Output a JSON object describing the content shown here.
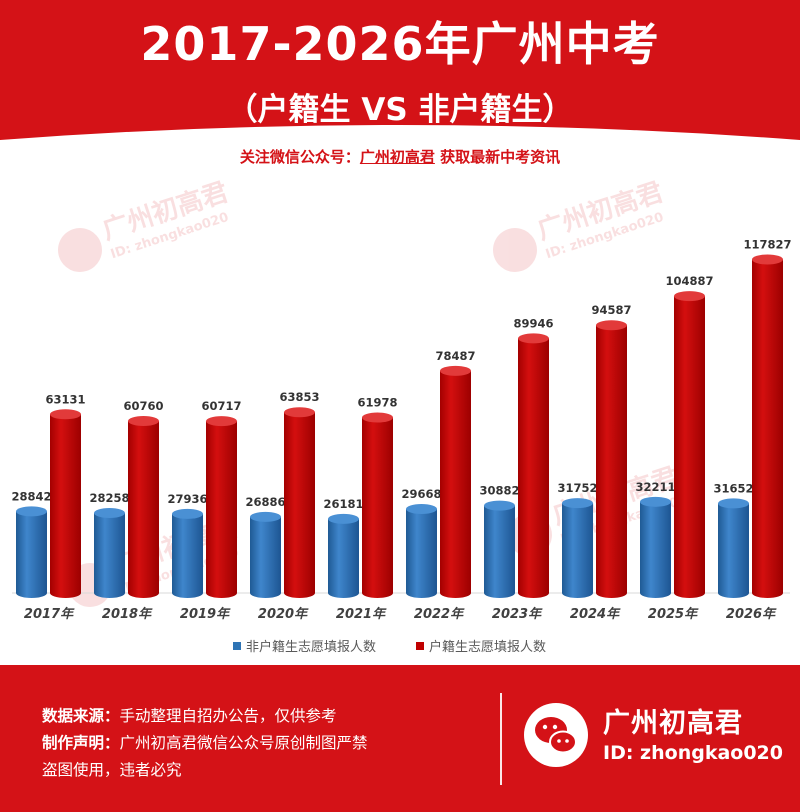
{
  "header": {
    "title": "2017-2026年广州中考",
    "subtitle": "（户籍生 VS 非户籍生）",
    "follow_prefix": "关注微信公众号：",
    "follow_account": "广州初高君",
    "follow_suffix": " 获取最新中考资讯",
    "bg_color": "#d41217"
  },
  "watermark": {
    "name": "广州初高君",
    "id": "ID: zhongkao020"
  },
  "chart_data": {
    "type": "bar",
    "categories": [
      "2017年",
      "2018年",
      "2019年",
      "2020年",
      "2021年",
      "2022年",
      "2023年",
      "2024年",
      "2025年",
      "2026年"
    ],
    "series": [
      {
        "name": "非户籍生志愿填报人数",
        "color": "#2e74b5",
        "values": [
          28842,
          28258,
          27936,
          26886,
          26181,
          29668,
          30882,
          31752,
          32211,
          31652
        ]
      },
      {
        "name": "户籍生志愿填报人数",
        "color": "#c00000",
        "values": [
          63131,
          60760,
          60717,
          63853,
          61978,
          78487,
          89946,
          94587,
          104887,
          117827
        ]
      }
    ],
    "title": "",
    "xlabel": "",
    "ylabel": "",
    "ylim": [
      0,
      130000
    ],
    "grid": false,
    "legend": "bottom",
    "style": "3d-cylinder"
  },
  "footer": {
    "source_key": "数据来源：",
    "source_value": "手动整理自招办公告，仅供参考",
    "notice_key": "制作声明：",
    "notice_value": "广州初高君微信公众号原创制图严禁",
    "notice_line2": "盗图使用，违者必究",
    "brand_name": "广州初高君",
    "brand_id": "ID: zhongkao020"
  }
}
